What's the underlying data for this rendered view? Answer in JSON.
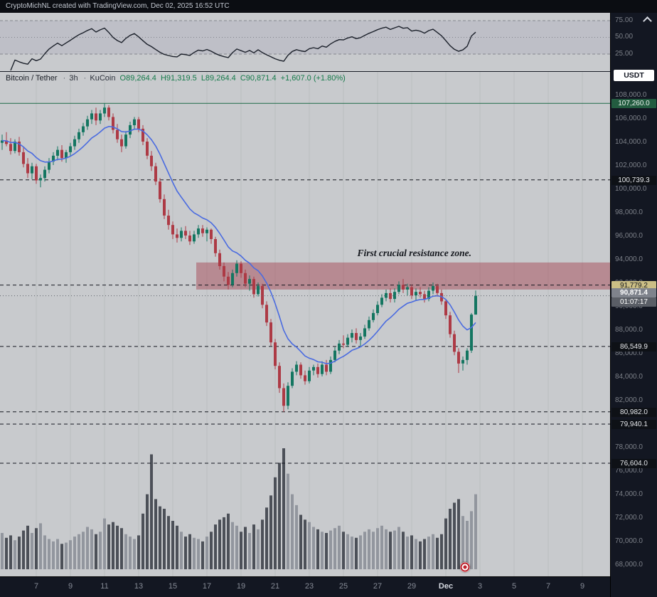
{
  "header": {
    "attribution": "CryptoMichNL created with TradingView.com, Dec 02, 2025 16:52 UTC"
  },
  "symbol_info": {
    "name": "Bitcoin / Tether",
    "separator": "·",
    "interval": "3h",
    "exchange": "KuCoin",
    "open": "O89,264.4",
    "high": "H91,319.5",
    "low": "L89,264.4",
    "close": "C90,871.4",
    "change": "+1,607.0 (+1.80%)"
  },
  "annotation": {
    "text": "First crucial resistance zone."
  },
  "axis": {
    "currency_button": "USDT",
    "rsi_ticks": [
      "75.00",
      "50.00",
      "25.00"
    ]
  },
  "chart_data": {
    "type": "candlestick",
    "title": "Bitcoin / Tether 3h KuCoin",
    "legend_position": "top-left",
    "grid": "faint-vertical",
    "colors": {
      "background": "#c8cacd",
      "axis_bg": "#131722",
      "axis_text": "#7d8189",
      "up": "#147661",
      "down": "#ad3a45",
      "vol_up": "#8d919a",
      "vol_down": "#41454e",
      "rsi": "#1c212b"
    },
    "ma": {
      "type": "EMA",
      "period": 12,
      "color": "#4a6be0"
    },
    "rsi": {
      "period": 14,
      "bands": [
        25,
        50,
        75
      ],
      "tick_labels": [
        "75.00",
        "50.00",
        "25.00"
      ]
    },
    "y_axis": {
      "min": 67000,
      "max": 110000,
      "tick_labels": [
        "108,000.0",
        "106,000.0",
        "104,000.0",
        "102,000.0",
        "100,000.0",
        "98,000.0",
        "96,000.0",
        "94,000.0",
        "92,000.0",
        "90,000.0",
        "88,000.0",
        "86,000.0",
        "84,000.0",
        "82,000.0",
        "80,000.0",
        "78,000.0",
        "76,000.0",
        "74,000.0",
        "72,000.0",
        "70,000.0",
        "68,000.0"
      ]
    },
    "x_ticks": [
      {
        "label": "7",
        "slot": 8
      },
      {
        "label": "9",
        "slot": 16
      },
      {
        "label": "11",
        "slot": 24
      },
      {
        "label": "13",
        "slot": 32
      },
      {
        "label": "15",
        "slot": 40
      },
      {
        "label": "17",
        "slot": 48
      },
      {
        "label": "19",
        "slot": 56
      },
      {
        "label": "21",
        "slot": 64
      },
      {
        "label": "23",
        "slot": 72
      },
      {
        "label": "25",
        "slot": 80
      },
      {
        "label": "27",
        "slot": 88
      },
      {
        "label": "29",
        "slot": 96
      },
      {
        "label": "Dec",
        "slot": 104,
        "emphasis": true
      },
      {
        "label": "3",
        "slot": 112
      },
      {
        "label": "5",
        "slot": 120
      },
      {
        "label": "7",
        "slot": 128
      },
      {
        "label": "9",
        "slot": 136
      }
    ],
    "zone": {
      "top": 93700,
      "bottom": 91400,
      "start_slot": 46,
      "color": "#a03240",
      "opacity": 0.42,
      "label": "First crucial resistance zone."
    },
    "levels": [
      {
        "price": 107260.0,
        "label": "107,260.0",
        "line_color": "#1d6b46",
        "dash": "",
        "label_bg": "#235c40",
        "label_fg": "#eaf3ee"
      },
      {
        "price": 100739.3,
        "label": "100,739.3",
        "line_color": "#14171f",
        "dash": "5,4",
        "label_bg": "#0e1116",
        "label_fg": "#e6e8ec"
      },
      {
        "price": 91779.2,
        "label": "91,779.2",
        "line_color": "#14171f",
        "dash": "5,4",
        "label_bg": "#cbbe85",
        "label_fg": "#15181e"
      },
      {
        "price": 86549.9,
        "label": "86,549.9",
        "line_color": "#14171f",
        "dash": "5,4",
        "label_bg": "#0e1116",
        "label_fg": "#e6e8ec"
      },
      {
        "price": 80982.0,
        "label": "80,982.0",
        "line_color": "#14171f",
        "dash": "5,4",
        "label_bg": "#0e1116",
        "label_fg": "#e6e8ec"
      },
      {
        "price": 79940.1,
        "label": "79,940.1",
        "line_color": "#14171f",
        "dash": "5,4",
        "label_bg": "#0e1116",
        "label_fg": "#e6e8ec"
      },
      {
        "price": 76604.0,
        "label": "76,604.0",
        "line_color": "#14171f",
        "dash": "5,4",
        "label_bg": "#0e1116",
        "label_fg": "#e6e8ec"
      }
    ],
    "current_price": {
      "price": 90871.4,
      "label": "90,871.4",
      "countdown": "01:07:17",
      "label_bg": "#7f838c",
      "countdown_bg": "#5a5e66",
      "label_fg": "#ffffff",
      "line_color": "#5f636c"
    },
    "ohlcv": [
      [
        103900,
        104600,
        103300,
        104100,
        30
      ],
      [
        104100,
        104800,
        103600,
        103800,
        26
      ],
      [
        103800,
        104300,
        102900,
        103200,
        28
      ],
      [
        103200,
        104200,
        103000,
        104000,
        24
      ],
      [
        104000,
        104400,
        102800,
        103100,
        27
      ],
      [
        103100,
        103500,
        101800,
        102100,
        32
      ],
      [
        102100,
        102600,
        100900,
        101300,
        36
      ],
      [
        101300,
        102200,
        100800,
        101900,
        30
      ],
      [
        101900,
        102100,
        100400,
        100700,
        34
      ],
      [
        100700,
        101200,
        100100,
        100900,
        38
      ],
      [
        100900,
        101900,
        100600,
        101600,
        28
      ],
      [
        101600,
        102600,
        101300,
        102300,
        25
      ],
      [
        102300,
        103100,
        102000,
        102800,
        23
      ],
      [
        102800,
        103600,
        102400,
        103300,
        25
      ],
      [
        103300,
        103700,
        102300,
        102600,
        21
      ],
      [
        102600,
        103300,
        102200,
        103100,
        22
      ],
      [
        103100,
        103900,
        102800,
        103600,
        24
      ],
      [
        103600,
        104500,
        103300,
        104200,
        27
      ],
      [
        104200,
        105100,
        103900,
        104800,
        29
      ],
      [
        104800,
        105600,
        104500,
        105300,
        31
      ],
      [
        105300,
        106200,
        105000,
        105900,
        35
      ],
      [
        105900,
        106700,
        105500,
        106400,
        33
      ],
      [
        106400,
        106900,
        105400,
        105800,
        29
      ],
      [
        105800,
        106700,
        105500,
        106400,
        31
      ],
      [
        106400,
        107260,
        106100,
        106900,
        42
      ],
      [
        106900,
        107100,
        105800,
        106100,
        37
      ],
      [
        106100,
        106400,
        104700,
        105000,
        39
      ],
      [
        105000,
        105500,
        103900,
        104200,
        36
      ],
      [
        104200,
        104600,
        103100,
        103600,
        34
      ],
      [
        103600,
        104900,
        103400,
        104600,
        29
      ],
      [
        104600,
        105700,
        104300,
        105400,
        27
      ],
      [
        105400,
        106100,
        105000,
        105900,
        25
      ],
      [
        105900,
        106100,
        104800,
        105100,
        28
      ],
      [
        105100,
        105400,
        103700,
        104000,
        46
      ],
      [
        104000,
        104300,
        102500,
        102800,
        62
      ],
      [
        102800,
        103200,
        101500,
        101900,
        95
      ],
      [
        101900,
        102200,
        100300,
        100600,
        58
      ],
      [
        100600,
        100900,
        98800,
        99100,
        52
      ],
      [
        99100,
        99500,
        97400,
        97700,
        50
      ],
      [
        97700,
        98200,
        96500,
        96900,
        44
      ],
      [
        96900,
        97200,
        95700,
        96100,
        40
      ],
      [
        96100,
        96600,
        95400,
        95800,
        36
      ],
      [
        95800,
        96700,
        95500,
        96400,
        31
      ],
      [
        96400,
        96800,
        95700,
        96000,
        27
      ],
      [
        96000,
        96400,
        95200,
        95500,
        29
      ],
      [
        95500,
        96400,
        95300,
        96100,
        26
      ],
      [
        96100,
        96900,
        95800,
        96600,
        25
      ],
      [
        96600,
        96900,
        95900,
        96200,
        23
      ],
      [
        96200,
        96700,
        95500,
        96500,
        27
      ],
      [
        96500,
        96600,
        95300,
        95700,
        31
      ],
      [
        95700,
        95900,
        94200,
        94500,
        37
      ],
      [
        94500,
        94800,
        93100,
        93400,
        41
      ],
      [
        93400,
        93700,
        92100,
        92500,
        43
      ],
      [
        92500,
        92900,
        91400,
        91800,
        46
      ],
      [
        91800,
        93100,
        91600,
        92800,
        39
      ],
      [
        92800,
        93900,
        92500,
        93600,
        36
      ],
      [
        93600,
        93800,
        92400,
        92800,
        31
      ],
      [
        92800,
        93100,
        91600,
        91900,
        35
      ],
      [
        91900,
        92600,
        91300,
        92300,
        30
      ],
      [
        92300,
        92500,
        90700,
        91000,
        37
      ],
      [
        91000,
        92000,
        90800,
        91700,
        33
      ],
      [
        91700,
        91900,
        89800,
        90100,
        41
      ],
      [
        90100,
        90400,
        88300,
        88600,
        51
      ],
      [
        88600,
        88900,
        86600,
        86900,
        61
      ],
      [
        86900,
        87200,
        84600,
        84900,
        76
      ],
      [
        84900,
        85200,
        82600,
        83000,
        88
      ],
      [
        83000,
        83400,
        80982,
        81500,
        100
      ],
      [
        81500,
        83500,
        81200,
        83200,
        79
      ],
      [
        83200,
        84700,
        83000,
        84400,
        62
      ],
      [
        84400,
        85300,
        84100,
        85000,
        53
      ],
      [
        85000,
        85200,
        83800,
        84100,
        45
      ],
      [
        84100,
        84500,
        83300,
        83600,
        41
      ],
      [
        83600,
        84800,
        83400,
        84500,
        39
      ],
      [
        84500,
        85000,
        84100,
        84800,
        35
      ],
      [
        84800,
        85100,
        83900,
        84200,
        33
      ],
      [
        84200,
        85300,
        84000,
        85000,
        31
      ],
      [
        85000,
        85400,
        84100,
        84400,
        30
      ],
      [
        84400,
        85700,
        84200,
        85400,
        32
      ],
      [
        85400,
        86500,
        85200,
        86200,
        34
      ],
      [
        86200,
        87100,
        85900,
        86800,
        36
      ],
      [
        86800,
        87500,
        86400,
        86700,
        31
      ],
      [
        86700,
        87600,
        86500,
        87300,
        29
      ],
      [
        87300,
        88000,
        86900,
        87700,
        27
      ],
      [
        87700,
        88100,
        86800,
        87100,
        26
      ],
      [
        87100,
        87700,
        86600,
        87400,
        28
      ],
      [
        87400,
        88400,
        87200,
        88100,
        31
      ],
      [
        88100,
        89100,
        87900,
        88800,
        33
      ],
      [
        88800,
        89700,
        88600,
        89400,
        31
      ],
      [
        89400,
        90400,
        89200,
        90100,
        34
      ],
      [
        90100,
        91000,
        89900,
        90700,
        36
      ],
      [
        90700,
        91400,
        90400,
        91100,
        33
      ],
      [
        91100,
        91500,
        90300,
        90600,
        31
      ],
      [
        90600,
        91500,
        90300,
        91200,
        32
      ],
      [
        91200,
        92100,
        91000,
        91800,
        35
      ],
      [
        91800,
        92300,
        91100,
        91400,
        31
      ],
      [
        91400,
        91900,
        90900,
        91600,
        27
      ],
      [
        91600,
        91800,
        90600,
        90900,
        28
      ],
      [
        90900,
        91500,
        90500,
        91200,
        25
      ],
      [
        91200,
        91600,
        90700,
        91000,
        23
      ],
      [
        91000,
        91300,
        90300,
        90600,
        25
      ],
      [
        90600,
        91600,
        90400,
        91300,
        27
      ],
      [
        91300,
        92000,
        91000,
        91700,
        29
      ],
      [
        91700,
        91900,
        90800,
        91100,
        26
      ],
      [
        91100,
        91400,
        90100,
        90400,
        29
      ],
      [
        90400,
        90600,
        88900,
        89200,
        42
      ],
      [
        89200,
        89500,
        87300,
        87600,
        50
      ],
      [
        87600,
        87900,
        85800,
        86100,
        55
      ],
      [
        86100,
        86400,
        84300,
        85100,
        58
      ],
      [
        85100,
        85700,
        84500,
        85400,
        44
      ],
      [
        85400,
        86400,
        85000,
        86200,
        40
      ],
      [
        86200,
        89400,
        86000,
        89264.4,
        48
      ],
      [
        89264.4,
        91319.5,
        89264.4,
        90871.4,
        62
      ]
    ]
  }
}
